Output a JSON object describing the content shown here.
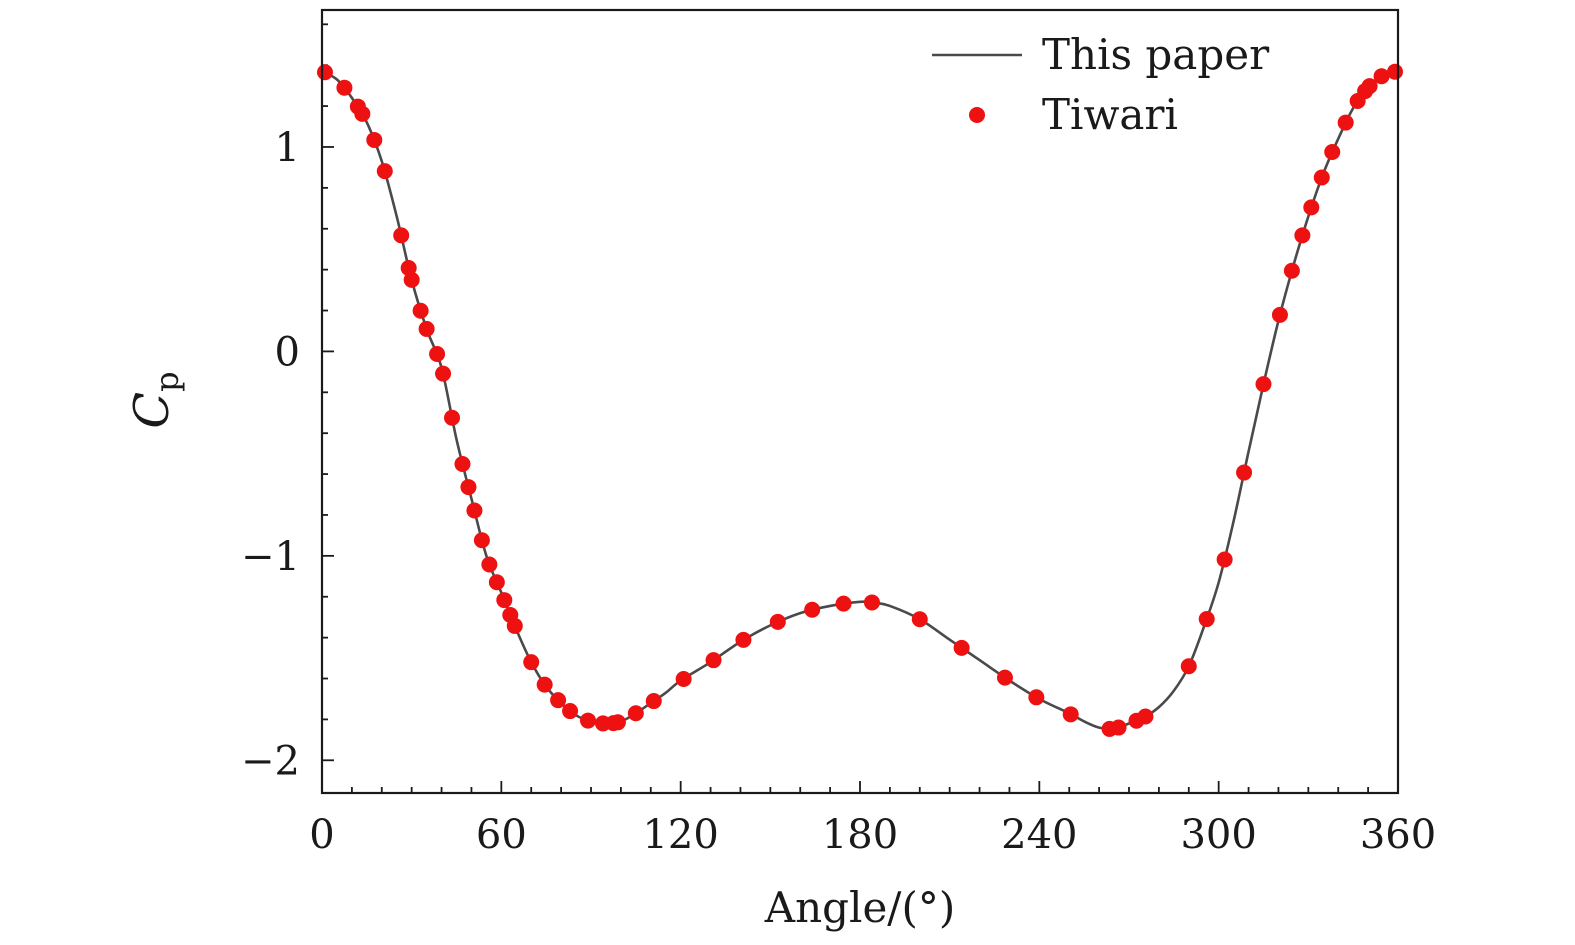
{
  "chart_data": {
    "type": "line",
    "title": "",
    "xlabel": "Angle/(°)",
    "ylabel_main": "C",
    "ylabel_sub": "p",
    "xlim": [
      0,
      360
    ],
    "ylim": [
      -2.16,
      1.67
    ],
    "x_ticks": [
      0,
      60,
      120,
      180,
      240,
      300,
      360
    ],
    "x_tick_labels": [
      "0",
      "60",
      "120",
      "180",
      "240",
      "300",
      "360"
    ],
    "x_minor_step": 10,
    "y_ticks": [
      -2,
      -1,
      0,
      1
    ],
    "y_tick_labels": [
      "−2",
      "−1",
      "0",
      "1"
    ],
    "y_minor_step": 0.2,
    "grid": false,
    "legend": {
      "position": "top-right",
      "entries": [
        "This paper",
        "Tiwari"
      ]
    },
    "series": [
      {
        "name": "This paper",
        "kind": "line",
        "color": "#4a4a4a",
        "x": [
          0,
          5,
          10,
          15,
          20,
          25,
          30,
          35,
          40,
          45,
          50,
          55,
          60,
          65,
          70,
          75,
          80,
          85,
          90,
          95,
          100,
          105,
          110,
          115,
          120,
          130,
          140,
          150,
          160,
          170,
          180,
          185,
          190,
          200,
          210,
          220,
          230,
          240,
          250,
          255,
          260,
          265,
          270,
          275,
          280,
          285,
          290,
          295,
          300,
          305,
          310,
          315,
          320,
          325,
          330,
          335,
          340,
          345,
          350,
          355,
          360
        ],
        "y": [
          1.37,
          1.33,
          1.24,
          1.12,
          0.93,
          0.66,
          0.35,
          0.11,
          -0.08,
          -0.43,
          -0.72,
          -1.0,
          -1.18,
          -1.36,
          -1.52,
          -1.64,
          -1.72,
          -1.78,
          -1.81,
          -1.82,
          -1.81,
          -1.77,
          -1.72,
          -1.67,
          -1.61,
          -1.52,
          -1.42,
          -1.34,
          -1.28,
          -1.245,
          -1.225,
          -1.23,
          -1.245,
          -1.31,
          -1.41,
          -1.51,
          -1.61,
          -1.7,
          -1.77,
          -1.81,
          -1.84,
          -1.845,
          -1.82,
          -1.79,
          -1.74,
          -1.66,
          -1.54,
          -1.35,
          -1.13,
          -0.83,
          -0.49,
          -0.16,
          0.15,
          0.42,
          0.66,
          0.87,
          1.04,
          1.19,
          1.29,
          1.35,
          1.37
        ]
      },
      {
        "name": "Tiwari",
        "kind": "scatter",
        "color": "#ee1111",
        "x": [
          1,
          7.5,
          12,
          13.5,
          17.5,
          21,
          26.5,
          29,
          30,
          33,
          35,
          38.5,
          40.5,
          43.5,
          47,
          49,
          51,
          53.5,
          56,
          58.5,
          61,
          63,
          64.5,
          70,
          74.5,
          79,
          83,
          89,
          94,
          97.5,
          99,
          105,
          111,
          121,
          131,
          141,
          152.5,
          164,
          174.5,
          184,
          200,
          214,
          228.5,
          239,
          250.5,
          263.5,
          266.5,
          272.5,
          275.5,
          290,
          296,
          302,
          308.5,
          315,
          320.5,
          324.5,
          328,
          331,
          334.5,
          338,
          342.5,
          346.5,
          349,
          350.5,
          354.5,
          359
        ]
      }
    ]
  }
}
